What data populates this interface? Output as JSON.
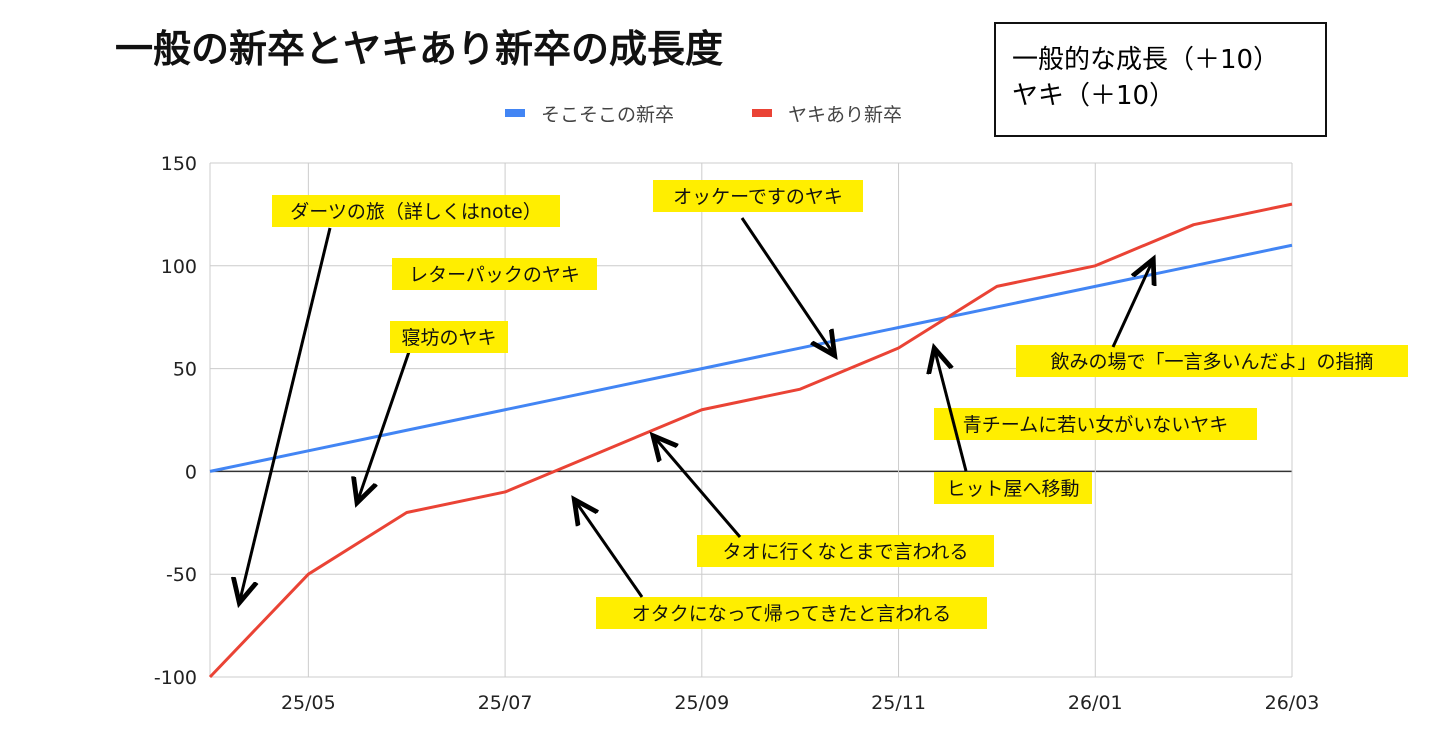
{
  "chart_data": {
    "type": "line",
    "title": "一般の新卒とヤキあり新卒の成長度",
    "x": [
      "25/04",
      "25/05",
      "25/06",
      "25/07",
      "25/08",
      "25/09",
      "25/10",
      "25/11",
      "25/12",
      "26/01",
      "26/02",
      "26/03"
    ],
    "x_tick_labels": [
      "25/05",
      "25/07",
      "25/09",
      "25/11",
      "26/01",
      "26/03"
    ],
    "ylim": [
      -100,
      150
    ],
    "y_ticks": [
      -100,
      -50,
      0,
      50,
      100,
      150
    ],
    "grid": true,
    "legend_position": "top",
    "series": [
      {
        "name": "そこそこの新卒",
        "color": "#4285f4",
        "values": [
          0,
          10,
          20,
          30,
          40,
          50,
          60,
          70,
          80,
          90,
          100,
          110
        ]
      },
      {
        "name": "ヤキあり新卒",
        "color": "#ea4335",
        "values": [
          -100,
          -50,
          -20,
          -10,
          10,
          30,
          40,
          60,
          90,
          100,
          120,
          130
        ]
      }
    ],
    "annotations": [
      "ダーツの旅（詳しくはnote）",
      "レターパックのヤキ",
      "寝坊のヤキ",
      "オッケーですのヤキ",
      "飲みの場で「一言多いんだよ」の指摘",
      "青チームに若い女がいないヤキ",
      "ヒット屋へ移動",
      "タオに行くなとまで言われる",
      "オタクになって帰ってきたと言われる"
    ],
    "annotation_color": "#ffee00"
  },
  "note_box": {
    "lines": [
      "一般的な成長（＋10）",
      "ヤキ（＋10）"
    ]
  }
}
